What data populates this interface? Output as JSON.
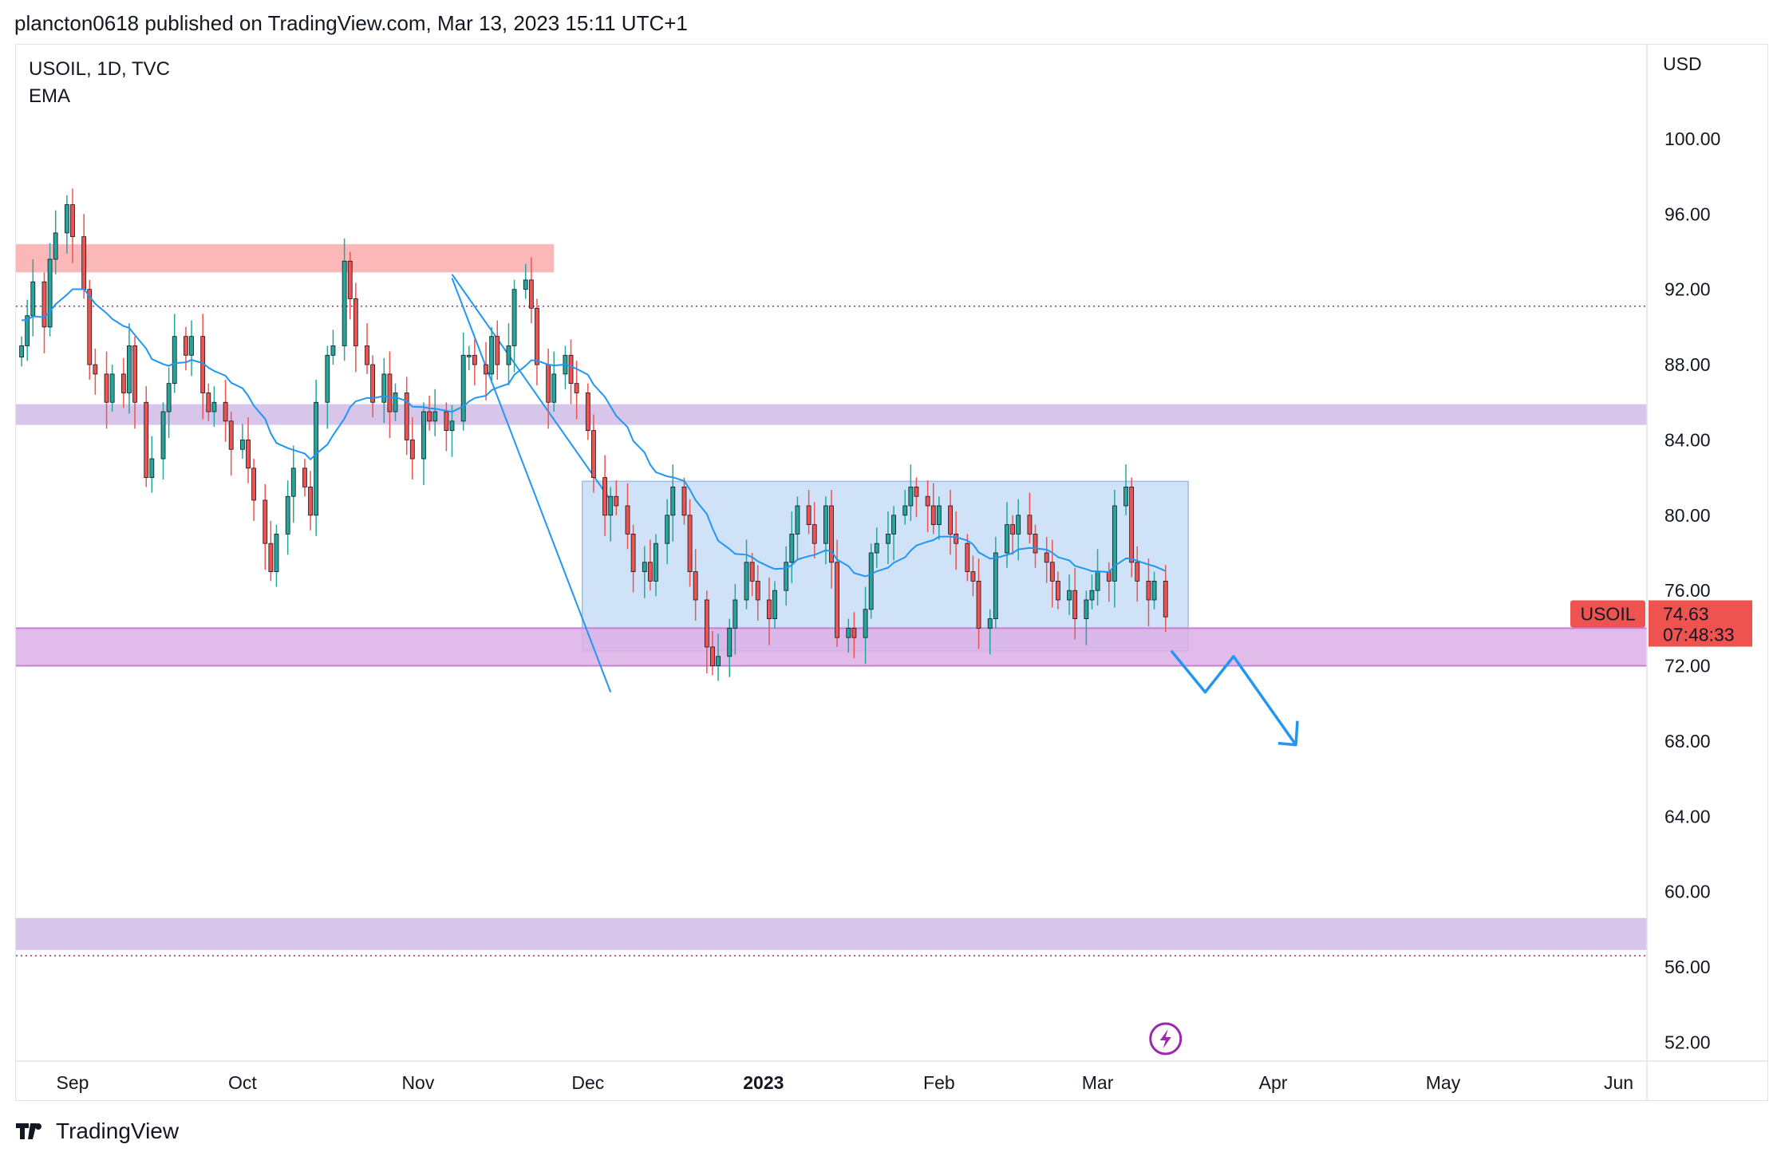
{
  "header": {
    "text": "plancton0618 published on TradingView.com, Mar 13, 2023 15:11 UTC+1"
  },
  "legend": {
    "symbol": "USOIL, 1D, TVC",
    "indicator": "EMA"
  },
  "footer": {
    "brand": "TradingView"
  },
  "colors": {
    "up": "#26a69a",
    "down": "#ef5350",
    "ema": "#2196f3",
    "resistance": "#fbb8b8",
    "support": "#d7c5ea",
    "range": "#bcd6f5",
    "demand": "#dcb0e6",
    "price_tag": "#ef5350"
  },
  "chart_data": {
    "type": "candlestick",
    "symbol": "USOIL",
    "timeframe": "1D",
    "currency": "USD",
    "y_ticks": [
      "100.00",
      "96.00",
      "92.00",
      "88.00",
      "84.00",
      "80.00",
      "76.00",
      "72.00",
      "68.00",
      "64.00",
      "60.00",
      "56.00",
      "52.00"
    ],
    "ylim": [
      51,
      105
    ],
    "x_ticks": [
      {
        "label": "Sep",
        "date": "2022-09-01"
      },
      {
        "label": "Oct",
        "date": "2022-10-01"
      },
      {
        "label": "Nov",
        "date": "2022-11-01"
      },
      {
        "label": "Dec",
        "date": "2022-12-01"
      },
      {
        "label": "2023",
        "date": "2023-01-01",
        "bold": true
      },
      {
        "label": "Feb",
        "date": "2023-02-01"
      },
      {
        "label": "Mar",
        "date": "2023-03-01"
      },
      {
        "label": "Apr",
        "date": "2023-04-01"
      },
      {
        "label": "May",
        "date": "2023-05-01"
      },
      {
        "label": "Jun",
        "date": "2023-06-01"
      }
    ],
    "x_start": "2022-08-22",
    "x_end": "2023-06-06",
    "last_price": {
      "label": "USOIL",
      "price": "74.63",
      "countdown": "07:48:33",
      "value": 74.63
    },
    "closes": [
      89.0,
      90.6,
      92.4,
      90.0,
      93.6,
      95.0,
      96.5,
      94.8,
      92.0,
      88.0,
      87.5,
      86.0,
      87.5,
      86.5,
      89.0,
      86.0,
      82.0,
      83.0,
      85.5,
      87.0,
      89.5,
      88.5,
      89.5,
      86.5,
      85.5,
      86.0,
      85.0,
      83.5,
      84.0,
      82.5,
      80.8,
      78.5,
      77.0,
      79.0,
      81.0,
      82.5,
      81.5,
      80.0,
      86.0,
      88.5,
      89.0,
      93.5,
      91.5,
      89.0,
      88.0,
      86.0,
      87.5,
      85.5,
      86.5,
      84.0,
      83.0,
      85.5,
      85.0,
      85.5,
      84.5,
      85.0,
      88.5,
      88.5,
      88.0,
      87.5,
      89.5,
      88.0,
      89.0,
      92.0,
      92.5,
      91.0,
      88.0,
      86.0,
      87.5,
      88.5,
      87.0,
      86.5,
      84.5,
      82.0,
      80.0,
      81.0,
      80.5,
      79.0,
      77.0,
      77.5,
      76.5,
      78.5,
      80.0,
      81.5,
      80.0,
      77.0,
      75.5,
      73.0,
      72.0,
      72.5,
      74.0,
      75.5,
      77.5,
      76.5,
      75.5,
      74.5,
      76.0,
      77.5,
      79.0,
      80.5,
      79.5,
      78.5,
      80.5,
      77.5,
      73.5,
      74.0,
      73.5,
      75.0,
      78.0,
      78.5,
      79.0,
      80.0,
      80.5,
      81.5,
      81.0,
      80.5,
      79.5,
      80.5,
      79.0,
      78.5,
      77.0,
      76.5,
      74.0,
      74.5,
      78.0,
      79.5,
      79.0,
      80.0,
      79.0,
      78.0,
      77.5,
      76.5,
      75.5,
      76.0,
      74.5,
      75.5,
      76.0,
      77.0,
      76.5,
      80.5,
      81.5,
      77.5,
      76.5,
      75.5,
      76.5,
      74.6
    ],
    "annotations": {
      "resistance_zone": [
        92.9,
        94.4
      ],
      "support_zone_1": [
        84.8,
        85.9
      ],
      "range_box": {
        "from": "2022-11-30",
        "to": "2023-03-17",
        "low": 72.8,
        "high": 81.8
      },
      "demand_zone": [
        72.0,
        74.0
      ],
      "support_zone_2": [
        56.9,
        58.6
      ],
      "dotted_levels": [
        91.1,
        56.6
      ],
      "forecast_arrow": [
        {
          "date": "2023-03-14",
          "value": 72.8
        },
        {
          "date": "2023-03-20",
          "value": 70.6
        },
        {
          "date": "2023-03-25",
          "value": 72.5
        },
        {
          "date": "2023-04-05",
          "value": 67.8
        }
      ]
    }
  }
}
